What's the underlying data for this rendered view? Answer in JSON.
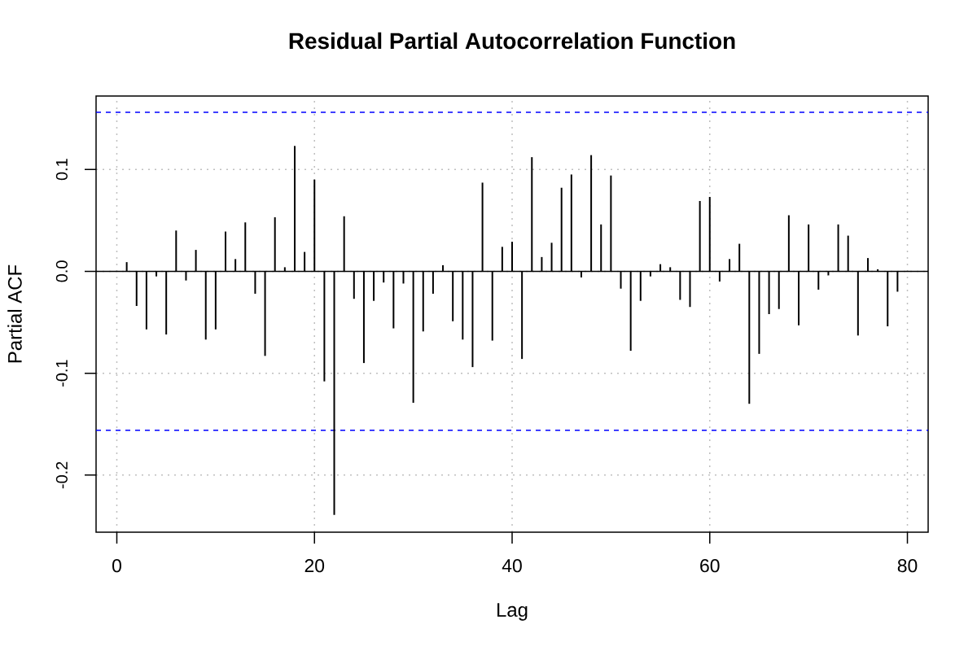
{
  "chart_data": {
    "type": "bar",
    "title": "Residual Partial Autocorrelation Function",
    "xlabel": "Lag",
    "ylabel": "Partial ACF",
    "x": [
      1,
      2,
      3,
      4,
      5,
      6,
      7,
      8,
      9,
      10,
      11,
      12,
      13,
      14,
      15,
      16,
      17,
      18,
      19,
      20,
      21,
      22,
      23,
      24,
      25,
      26,
      27,
      28,
      29,
      30,
      31,
      32,
      33,
      34,
      35,
      36,
      37,
      38,
      39,
      40,
      41,
      42,
      43,
      44,
      45,
      46,
      47,
      48,
      49,
      50,
      51,
      52,
      53,
      54,
      55,
      56,
      57,
      58,
      59,
      60,
      61,
      62,
      63,
      64,
      65,
      66,
      67,
      68,
      69,
      70,
      71,
      72,
      73,
      74,
      75,
      76,
      77,
      78,
      79
    ],
    "values": [
      0.009,
      -0.034,
      -0.057,
      -0.005,
      -0.062,
      0.04,
      -0.009,
      0.021,
      -0.067,
      -0.057,
      0.039,
      0.012,
      0.048,
      -0.022,
      -0.083,
      0.053,
      0.004,
      0.123,
      0.019,
      0.09,
      -0.108,
      -0.239,
      0.054,
      -0.027,
      -0.09,
      -0.029,
      -0.011,
      -0.056,
      -0.012,
      -0.129,
      -0.059,
      -0.022,
      0.006,
      -0.049,
      -0.067,
      -0.094,
      0.087,
      -0.068,
      0.024,
      0.029,
      -0.086,
      0.112,
      0.014,
      0.028,
      0.082,
      0.095,
      -0.006,
      0.114,
      0.046,
      0.094,
      -0.017,
      -0.078,
      -0.029,
      -0.005,
      0.007,
      0.004,
      -0.028,
      -0.035,
      0.069,
      0.073,
      -0.01,
      0.012,
      0.027,
      -0.13,
      -0.081,
      -0.042,
      -0.037,
      0.055,
      -0.053,
      0.046,
      -0.018,
      -0.004,
      0.046,
      0.035,
      -0.063,
      0.013,
      0.002,
      -0.054,
      -0.02
    ],
    "color": "#000000",
    "xlim": [
      -2.1,
      82.1
    ],
    "ylim": [
      -0.256,
      0.172
    ],
    "xticks": [
      0,
      20,
      40,
      60,
      80
    ],
    "yticks": [
      -0.2,
      -0.1,
      {
        "value": 0,
        "label": "0.0"
      },
      0.1
    ],
    "grid": true,
    "ref_lines": [
      {
        "axis": "y",
        "value": 0,
        "color": "#000000",
        "line_style": "solid"
      },
      {
        "axis": "y",
        "value": 0.156,
        "color": "#0000ff",
        "line_style": "dashed"
      },
      {
        "axis": "y",
        "value": -0.156,
        "color": "#0000ff",
        "line_style": "dashed"
      }
    ]
  }
}
